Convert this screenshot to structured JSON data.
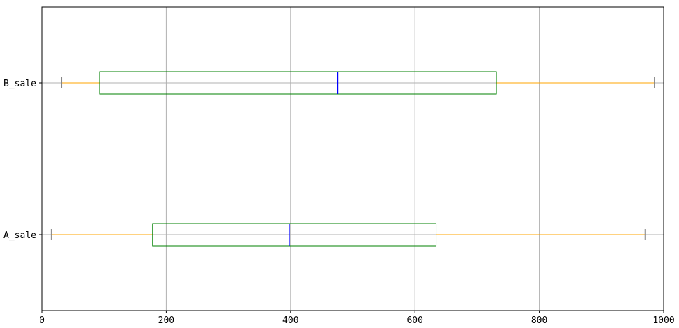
{
  "chart_data": {
    "type": "boxplot",
    "orientation": "horizontal",
    "xlim": [
      0,
      1000
    ],
    "x_ticks": [
      "0",
      "200",
      "400",
      "600",
      "800",
      "1000"
    ],
    "x_tick_values": [
      0,
      200,
      400,
      600,
      800,
      1000
    ],
    "grid": true,
    "categories": [
      "A_sale",
      "B_sale"
    ],
    "series": [
      {
        "name": "A_sale",
        "whisker_low": 15,
        "q1": 178,
        "median": 398,
        "q3": 634,
        "whisker_high": 970
      },
      {
        "name": "B_sale",
        "whisker_low": 32,
        "q1": 93,
        "median": 476,
        "q3": 731,
        "whisker_high": 985
      }
    ],
    "colors": {
      "box": "#008000",
      "median": "#0000ff",
      "whisker": "#ffa500",
      "cap": "#808080",
      "grid": "#b0b0b0",
      "axes": "#000000"
    }
  }
}
